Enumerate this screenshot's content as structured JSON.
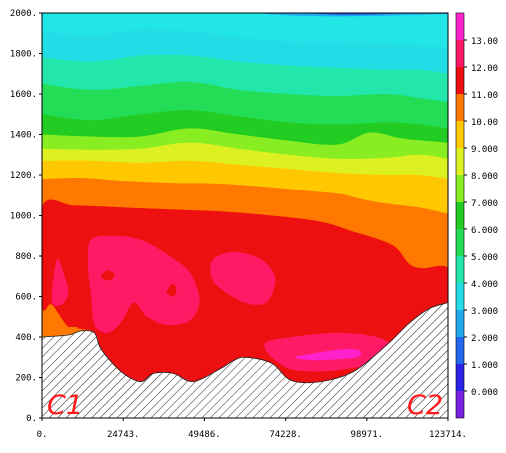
{
  "chart_data": {
    "type": "heatmap",
    "x_ticks": [
      "0.",
      "24743.",
      "49486.",
      "74228.",
      "98971.",
      "123714."
    ],
    "y_ticks": [
      "0.",
      "200.",
      "400.",
      "600.",
      "800.",
      "1000.",
      "1200.",
      "1400.",
      "1600.",
      "1800.",
      "2000."
    ],
    "xlim": [
      0,
      123714
    ],
    "ylim": [
      0,
      2000
    ],
    "colorbar": {
      "labels": [
        "0.000",
        "1.000",
        "2.000",
        "3.000",
        "4.000",
        "5.000",
        "6.000",
        "7.000",
        "8.000",
        "9.000",
        "10.00",
        "11.00",
        "12.00",
        "13.00"
      ],
      "range": [
        -1,
        14
      ],
      "colors": [
        "#7a22e6",
        "#2a22e6",
        "#2266ee",
        "#22aaee",
        "#22dde6",
        "#22e6aa",
        "#22dd55",
        "#22cc22",
        "#88ee22",
        "#ddf022",
        "#ffc800",
        "#ff7800",
        "#ee1010",
        "#ff1a66",
        "#ff22cc"
      ]
    },
    "corner_labels": {
      "left": "C1",
      "right": "C2"
    },
    "levels": [
      {
        "value": 9.5,
        "color": "#ff7800",
        "pts": [
          [
            0,
            1180
          ],
          [
            12000,
            1185
          ],
          [
            25000,
            1170
          ],
          [
            40000,
            1160
          ],
          [
            50000,
            1158
          ],
          [
            60000,
            1150
          ],
          [
            75000,
            1130
          ],
          [
            90000,
            1110
          ],
          [
            98000,
            1080
          ],
          [
            105000,
            1060
          ],
          [
            115000,
            1040
          ],
          [
            123714,
            1010
          ]
        ]
      },
      {
        "value": 8.5,
        "color": "#ffc800",
        "pts": [
          [
            0,
            1270
          ],
          [
            15000,
            1270
          ],
          [
            30000,
            1260
          ],
          [
            45000,
            1270
          ],
          [
            60000,
            1250
          ],
          [
            75000,
            1230
          ],
          [
            90000,
            1210
          ],
          [
            105000,
            1200
          ],
          [
            115000,
            1200
          ],
          [
            123714,
            1180
          ]
        ]
      },
      {
        "value": 7.5,
        "color": "#ddf022",
        "pts": [
          [
            0,
            1330
          ],
          [
            15000,
            1325
          ],
          [
            30000,
            1330
          ],
          [
            45000,
            1360
          ],
          [
            60000,
            1330
          ],
          [
            75000,
            1300
          ],
          [
            90000,
            1280
          ],
          [
            105000,
            1285
          ],
          [
            115000,
            1300
          ],
          [
            123714,
            1280
          ]
        ]
      },
      {
        "value": 6.5,
        "color": "#88ee22",
        "pts": [
          [
            0,
            1400
          ],
          [
            15000,
            1390
          ],
          [
            30000,
            1390
          ],
          [
            45000,
            1430
          ],
          [
            60000,
            1400
          ],
          [
            75000,
            1370
          ],
          [
            90000,
            1350
          ],
          [
            100000,
            1410
          ],
          [
            110000,
            1380
          ],
          [
            123714,
            1360
          ]
        ]
      },
      {
        "value": 5.5,
        "color": "#22cc22",
        "pts": [
          [
            0,
            1500
          ],
          [
            15000,
            1470
          ],
          [
            30000,
            1500
          ],
          [
            45000,
            1520
          ],
          [
            60000,
            1490
          ],
          [
            75000,
            1460
          ],
          [
            90000,
            1450
          ],
          [
            105000,
            1460
          ],
          [
            115000,
            1450
          ],
          [
            123714,
            1430
          ]
        ]
      },
      {
        "value": 4.5,
        "color": "#22dd55",
        "pts": [
          [
            0,
            1650
          ],
          [
            15000,
            1620
          ],
          [
            30000,
            1640
          ],
          [
            45000,
            1660
          ],
          [
            60000,
            1620
          ],
          [
            75000,
            1600
          ],
          [
            90000,
            1590
          ],
          [
            105000,
            1600
          ],
          [
            115000,
            1580
          ],
          [
            123714,
            1560
          ]
        ]
      },
      {
        "value": 3.5,
        "color": "#22e6aa",
        "pts": [
          [
            0,
            1780
          ],
          [
            15000,
            1760
          ],
          [
            30000,
            1790
          ],
          [
            45000,
            1790
          ],
          [
            60000,
            1760
          ],
          [
            75000,
            1740
          ],
          [
            90000,
            1730
          ],
          [
            105000,
            1720
          ],
          [
            115000,
            1720
          ],
          [
            123714,
            1700
          ]
        ]
      },
      {
        "value": 2.5,
        "color": "#22dde6",
        "pts": [
          [
            0,
            1910
          ],
          [
            15000,
            1890
          ],
          [
            30000,
            1920
          ],
          [
            45000,
            1910
          ],
          [
            60000,
            1880
          ],
          [
            75000,
            1860
          ],
          [
            90000,
            1860
          ],
          [
            105000,
            1850
          ],
          [
            115000,
            1840
          ],
          [
            123714,
            1830
          ]
        ]
      }
    ],
    "red_region": {
      "value": 10.5,
      "color": "#ee1010",
      "pts": [
        [
          0,
          560
        ],
        [
          0,
          1040
        ],
        [
          10000,
          1050
        ],
        [
          25000,
          1040
        ],
        [
          40000,
          1030
        ],
        [
          55000,
          1020
        ],
        [
          70000,
          1000
        ],
        [
          85000,
          970
        ],
        [
          95000,
          920
        ],
        [
          103000,
          880
        ],
        [
          108000,
          840
        ],
        [
          112000,
          760
        ],
        [
          116000,
          740
        ],
        [
          123714,
          740
        ],
        [
          123714,
          570
        ],
        [
          118000,
          540
        ],
        [
          112000,
          470
        ],
        [
          105000,
          360
        ],
        [
          95000,
          230
        ],
        [
          85000,
          180
        ],
        [
          76000,
          185
        ],
        [
          70000,
          270
        ],
        [
          62000,
          300
        ],
        [
          58000,
          280
        ],
        [
          54000,
          240
        ],
        [
          46000,
          180
        ],
        [
          40000,
          220
        ],
        [
          34000,
          220
        ],
        [
          30000,
          180
        ],
        [
          24000,
          230
        ],
        [
          18000,
          340
        ],
        [
          16000,
          420
        ],
        [
          12000,
          440
        ],
        [
          8000,
          450
        ],
        [
          3000,
          560
        ]
      ]
    },
    "magenta_patches": [
      {
        "value": 11.5,
        "color": "#ff1a66",
        "pts": [
          [
            15000,
            880
          ],
          [
            22000,
            900
          ],
          [
            30000,
            880
          ],
          [
            38000,
            810
          ],
          [
            45000,
            720
          ],
          [
            48000,
            580
          ],
          [
            45000,
            480
          ],
          [
            38000,
            460
          ],
          [
            32000,
            500
          ],
          [
            28000,
            570
          ],
          [
            24000,
            470
          ],
          [
            20000,
            420
          ],
          [
            16000,
            460
          ],
          [
            15000,
            600
          ],
          [
            14000,
            760
          ]
        ]
      },
      {
        "value": 11.5,
        "color": "#ff1a66",
        "pts": [
          [
            52000,
            780
          ],
          [
            58000,
            820
          ],
          [
            66000,
            790
          ],
          [
            71000,
            700
          ],
          [
            69000,
            580
          ],
          [
            64000,
            560
          ],
          [
            58000,
            600
          ],
          [
            52000,
            680
          ]
        ]
      },
      {
        "value": 11.5,
        "color": "#ff1a66",
        "pts": [
          [
            68000,
            370
          ],
          [
            76000,
            400
          ],
          [
            90000,
            420
          ],
          [
            102000,
            400
          ],
          [
            108000,
            340
          ],
          [
            106000,
            280
          ],
          [
            96000,
            250
          ],
          [
            86000,
            230
          ],
          [
            76000,
            240
          ],
          [
            70000,
            300
          ]
        ]
      },
      {
        "value": 11.5,
        "color": "#ff1a66",
        "pts": [
          [
            3000,
            580
          ],
          [
            4500,
            780
          ],
          [
            6500,
            720
          ],
          [
            8000,
            620
          ],
          [
            6000,
            560
          ]
        ]
      }
    ],
    "hot_patches": [
      {
        "value": 12.5,
        "color": "#ff22cc",
        "pts": [
          [
            77000,
            300
          ],
          [
            83000,
            320
          ],
          [
            92000,
            340
          ],
          [
            97000,
            330
          ],
          [
            96000,
            300
          ],
          [
            90000,
            290
          ],
          [
            82000,
            285
          ]
        ]
      }
    ],
    "small_red_islands": [
      {
        "value": 10.5,
        "color": "#ee1010",
        "pts": [
          [
            18000,
            700
          ],
          [
            20000,
            730
          ],
          [
            22000,
            710
          ],
          [
            21000,
            680
          ],
          [
            19000,
            685
          ]
        ]
      },
      {
        "value": 10.5,
        "color": "#ee1010",
        "pts": [
          [
            38000,
            620
          ],
          [
            39500,
            660
          ],
          [
            41000,
            640
          ],
          [
            40000,
            600
          ]
        ]
      }
    ],
    "top_blue": [
      {
        "value": 1.5,
        "color": "#22aaee",
        "pts": [
          [
            70000,
            2000
          ],
          [
            80000,
            1985
          ],
          [
            100000,
            1985
          ],
          [
            123714,
            1995
          ],
          [
            123714,
            2000
          ]
        ]
      },
      {
        "value": 0.5,
        "color": "#2266ee",
        "pts": [
          [
            84000,
            2000
          ],
          [
            90000,
            1990
          ],
          [
            100000,
            1992
          ],
          [
            110000,
            2000
          ]
        ]
      }
    ],
    "terrain": [
      [
        0,
        400
      ],
      [
        8000,
        410
      ],
      [
        12000,
        430
      ],
      [
        16000,
        420
      ],
      [
        18000,
        340
      ],
      [
        24000,
        230
      ],
      [
        30000,
        180
      ],
      [
        34000,
        220
      ],
      [
        40000,
        220
      ],
      [
        46000,
        180
      ],
      [
        54000,
        240
      ],
      [
        58000,
        280
      ],
      [
        62000,
        300
      ],
      [
        70000,
        270
      ],
      [
        76000,
        185
      ],
      [
        85000,
        180
      ],
      [
        95000,
        230
      ],
      [
        105000,
        360
      ],
      [
        112000,
        470
      ],
      [
        118000,
        540
      ],
      [
        123714,
        570
      ]
    ],
    "orange_bottom_patch": [
      [
        2000,
        420
      ],
      [
        6000,
        440
      ],
      [
        9000,
        450
      ],
      [
        11000,
        445
      ],
      [
        9000,
        420
      ],
      [
        5000,
        415
      ]
    ]
  }
}
